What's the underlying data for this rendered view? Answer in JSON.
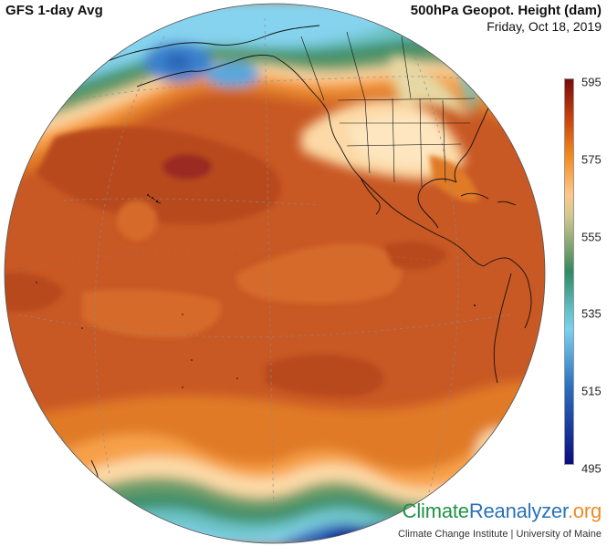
{
  "header": {
    "left_title": "GFS 1-day Avg",
    "variable_title": "500hPa Geopot. Height (dam)",
    "date": "Friday, Oct 18, 2019"
  },
  "colorbar": {
    "min": 495,
    "max": 595,
    "ticks": [
      "595",
      "575",
      "555",
      "535",
      "515",
      "495"
    ],
    "stops": [
      {
        "value": 595,
        "color": "#7a0a0a"
      },
      {
        "value": 585,
        "color": "#c8400c"
      },
      {
        "value": 575,
        "color": "#f58a1a"
      },
      {
        "value": 565,
        "color": "#fdc88a"
      },
      {
        "value": 560,
        "color": "#d9c98f"
      },
      {
        "value": 550,
        "color": "#6f9e6a"
      },
      {
        "value": 545,
        "color": "#2f8a63"
      },
      {
        "value": 535,
        "color": "#5fc0c8"
      },
      {
        "value": 530,
        "color": "#7ad2ee"
      },
      {
        "value": 515,
        "color": "#2b6fc0"
      },
      {
        "value": 495,
        "color": "#0a0c80"
      }
    ]
  },
  "map": {
    "projection": "orthographic",
    "center_region": "Eastern Pacific / North America",
    "field_colors": {
      "deep_red": "#9b2a20",
      "dark_orange": "#b8481f",
      "mid_orange": "#c85824",
      "orange": "#e07a28",
      "light_orange": "#f7a04a",
      "pale": "#fcd9a6",
      "tan": "#e6d8a4",
      "green": "#3f8f69",
      "teal": "#6cc2c4",
      "light_blue": "#86d3ef",
      "blue": "#3b82cc",
      "navy": "#0f1e8a"
    }
  },
  "branding": {
    "part1": "Climate",
    "part2": "Reanalyzer",
    "part3": ".org",
    "subtitle": "Climate Change Institute | University of Maine"
  }
}
